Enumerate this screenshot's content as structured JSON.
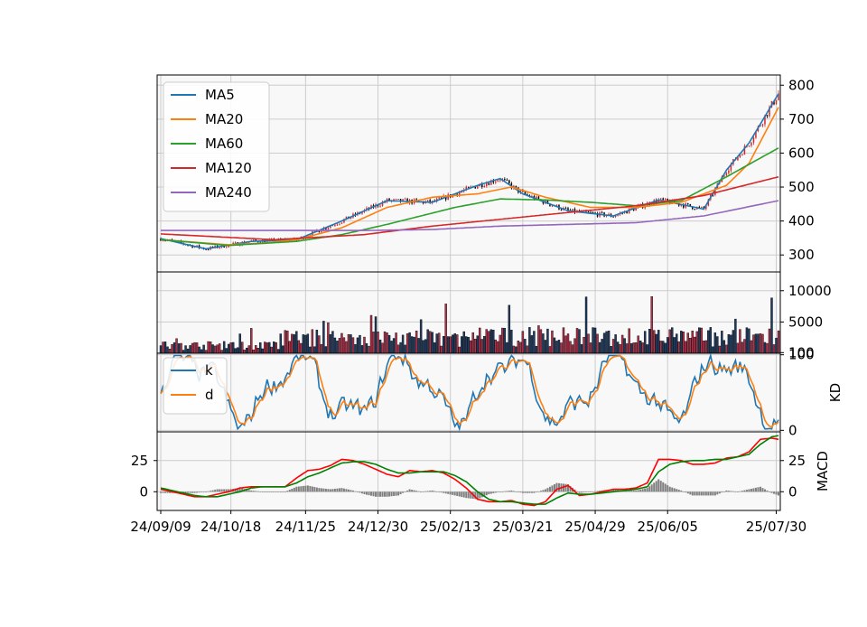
{
  "chart_data": [
    {
      "type": "candlestick",
      "panel": "price",
      "ylim": [
        250,
        830
      ],
      "yticks": [
        300,
        400,
        500,
        600,
        700,
        800
      ],
      "grid": true,
      "legend_position": "top-left",
      "colors": {
        "up": "#d62728",
        "down": "#000000",
        "background": "#f8f8f8"
      },
      "series": [
        {
          "name": "MA5",
          "color": "#1f77b4",
          "x": [
            0,
            20,
            40,
            60,
            80,
            100,
            120,
            140,
            150,
            160,
            170,
            180,
            200,
            220,
            240,
            250,
            260,
            273
          ],
          "values": [
            348,
            318,
            340,
            345,
            400,
            460,
            455,
            505,
            525,
            480,
            455,
            430,
            415,
            462,
            435,
            550,
            630,
            775
          ]
        },
        {
          "name": "MA20",
          "color": "#ff7f0e",
          "x": [
            0,
            30,
            45,
            60,
            80,
            100,
            120,
            140,
            155,
            170,
            190,
            210,
            230,
            250,
            260,
            273
          ],
          "values": [
            345,
            330,
            335,
            345,
            380,
            440,
            470,
            480,
            500,
            470,
            440,
            440,
            455,
            505,
            570,
            735
          ]
        },
        {
          "name": "MA60",
          "color": "#2ca02c",
          "x": [
            0,
            30,
            60,
            80,
            100,
            130,
            150,
            170,
            190,
            210,
            230,
            250,
            273
          ],
          "values": [
            345,
            328,
            340,
            360,
            390,
            440,
            465,
            462,
            455,
            445,
            460,
            530,
            615
          ]
        },
        {
          "name": "MA120",
          "color": "#d62728",
          "x": [
            0,
            50,
            90,
            120,
            150,
            180,
            210,
            240,
            273
          ],
          "values": [
            362,
            345,
            360,
            385,
            405,
            425,
            445,
            475,
            530
          ]
        },
        {
          "name": "MA240",
          "color": "#9467bd",
          "x": [
            0,
            50,
            90,
            120,
            150,
            180,
            210,
            240,
            273
          ],
          "values": [
            372,
            372,
            372,
            375,
            385,
            390,
            395,
            415,
            460
          ]
        }
      ]
    },
    {
      "type": "bar",
      "panel": "volume",
      "ylim": [
        0,
        13000
      ],
      "yticks": [
        100,
        5000,
        10000
      ],
      "grid": true
    },
    {
      "type": "line",
      "panel": "KD",
      "ylabel": "KD",
      "ylim": [
        -2,
        102
      ],
      "yticks": [
        0,
        100
      ],
      "grid": true,
      "legend_position": "top-left",
      "series": [
        {
          "name": "k",
          "color": "#1f77b4"
        },
        {
          "name": "d",
          "color": "#ff7f0e"
        }
      ]
    },
    {
      "type": "line",
      "panel": "MACD",
      "ylabel": "MACD",
      "ylim": [
        -15,
        48
      ],
      "yticks": [
        0,
        25
      ],
      "grid": true,
      "series": [
        {
          "color": "#ff0000",
          "x": [
            0,
            10,
            15,
            20,
            25,
            30,
            35,
            40,
            45,
            50,
            55,
            60,
            65,
            70,
            75,
            80,
            85,
            90,
            95,
            100,
            105,
            110,
            115,
            120,
            125,
            130,
            135,
            140,
            145,
            150,
            155,
            160,
            165,
            170,
            175,
            180,
            185,
            190,
            195,
            200,
            205,
            210,
            215,
            220,
            225,
            230,
            235,
            240,
            245,
            250,
            255,
            260,
            265,
            270,
            273
          ],
          "values": [
            2,
            -2,
            -4,
            -4,
            -2,
            0,
            3,
            4,
            4,
            4,
            4,
            11,
            17,
            18,
            21,
            26,
            25,
            22,
            18,
            14,
            12,
            17,
            16,
            17,
            15,
            10,
            3,
            -6,
            -8,
            -8,
            -7,
            -10,
            -11,
            -8,
            2,
            5,
            -3,
            -2,
            0,
            2,
            2,
            3,
            7,
            26,
            26,
            25,
            22,
            22,
            23,
            27,
            28,
            32,
            42,
            43,
            42
          ]
        },
        {
          "color": "#008000",
          "x": [
            0,
            10,
            15,
            20,
            25,
            30,
            35,
            40,
            45,
            50,
            55,
            60,
            65,
            70,
            75,
            80,
            85,
            90,
            95,
            100,
            105,
            110,
            115,
            120,
            125,
            130,
            135,
            140,
            145,
            150,
            155,
            160,
            165,
            170,
            175,
            180,
            185,
            190,
            195,
            200,
            205,
            210,
            215,
            220,
            225,
            230,
            235,
            240,
            245,
            250,
            255,
            260,
            265,
            270,
            273
          ],
          "values": [
            3,
            -1,
            -3,
            -4,
            -4,
            -2,
            0,
            3,
            4,
            4,
            4,
            7,
            12,
            15,
            19,
            23,
            24,
            24,
            22,
            18,
            15,
            15,
            16,
            16,
            16,
            13,
            8,
            0,
            -6,
            -8,
            -8,
            -9,
            -10,
            -10,
            -5,
            -1,
            -2,
            -2,
            -1,
            0,
            1,
            2,
            4,
            16,
            22,
            24,
            25,
            25,
            26,
            26,
            28,
            30,
            38,
            44,
            45
          ]
        },
        {
          "color": "#808080",
          "type": "bar"
        }
      ]
    }
  ],
  "xaxis": {
    "date_labels": [
      "24/09/09",
      "24/10/18",
      "24/11/25",
      "24/12/30",
      "25/02/13",
      "25/03/21",
      "25/04/29",
      "25/06/05",
      "25/07/30"
    ],
    "label_positions": [
      0,
      31,
      64,
      96,
      128,
      160,
      192,
      224,
      272
    ],
    "n_points": 274
  }
}
